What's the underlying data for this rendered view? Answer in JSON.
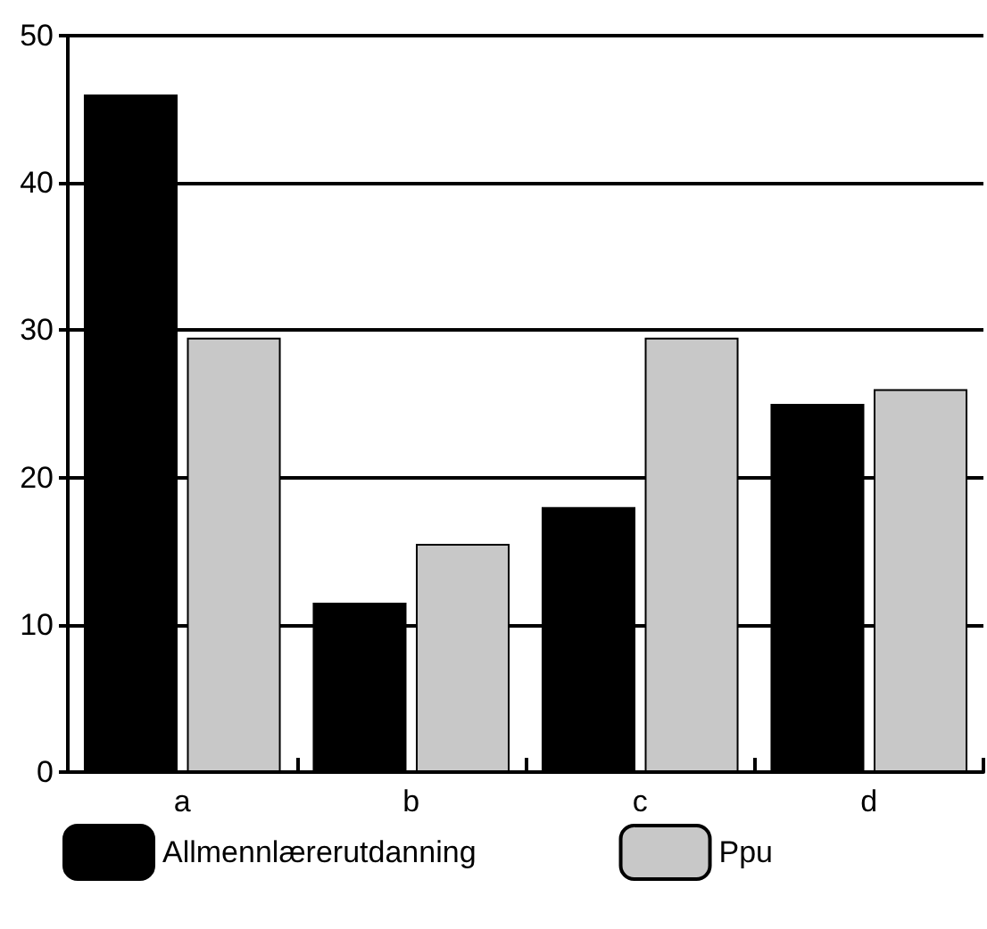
{
  "chart_data": {
    "type": "bar",
    "categories": [
      "a",
      "b",
      "c",
      "d"
    ],
    "series": [
      {
        "name": "Allmennlærerutdanning",
        "color": "#000000",
        "values": [
          46,
          11.5,
          18,
          25
        ]
      },
      {
        "name": "Ppu",
        "color": "#c8c8c8",
        "values": [
          29.5,
          15.5,
          29.5,
          26
        ]
      }
    ],
    "ylim": [
      0,
      50
    ],
    "yticks": [
      0,
      10,
      20,
      30,
      40,
      50
    ],
    "grid": "y",
    "legend": "bottom"
  }
}
